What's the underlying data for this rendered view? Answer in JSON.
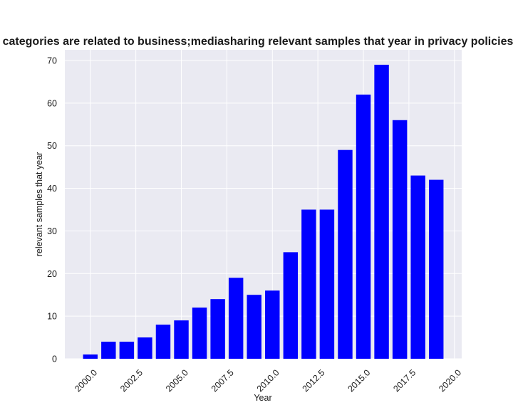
{
  "chart_data": {
    "type": "bar",
    "title": "categories are related to business;mediasharing relevant samples that year in privacy policies",
    "xlabel": "Year",
    "ylabel": "relevant samples that year",
    "x": [
      2000,
      2001,
      2002,
      2003,
      2004,
      2005,
      2006,
      2007,
      2008,
      2009,
      2010,
      2011,
      2012,
      2013,
      2014,
      2015,
      2016,
      2017,
      2018,
      2019
    ],
    "values": [
      1,
      4,
      4,
      5,
      8,
      9,
      12,
      14,
      19,
      15,
      16,
      25,
      35,
      35,
      49,
      62,
      69,
      56,
      43,
      42
    ],
    "xlim": [
      1998.6,
      2020.4
    ],
    "ylim": [
      0,
      72.5
    ],
    "xticks": [
      2000.0,
      2002.5,
      2005.0,
      2007.5,
      2010.0,
      2012.5,
      2015.0,
      2017.5,
      2020.0
    ],
    "xtick_labels": [
      "2000.0",
      "2002.5",
      "2005.0",
      "2007.5",
      "2010.0",
      "2012.5",
      "2015.0",
      "2017.5",
      "2020.0"
    ],
    "yticks": [
      0,
      10,
      20,
      30,
      40,
      50,
      60,
      70
    ],
    "ytick_labels": [
      "0",
      "10",
      "20",
      "30",
      "40",
      "50",
      "60",
      "70"
    ],
    "bar_width_years": 0.8,
    "grid": true,
    "colors": {
      "bar": "#0000ff",
      "plot_background": "#eaeaf2",
      "grid": "#ffffff"
    }
  }
}
